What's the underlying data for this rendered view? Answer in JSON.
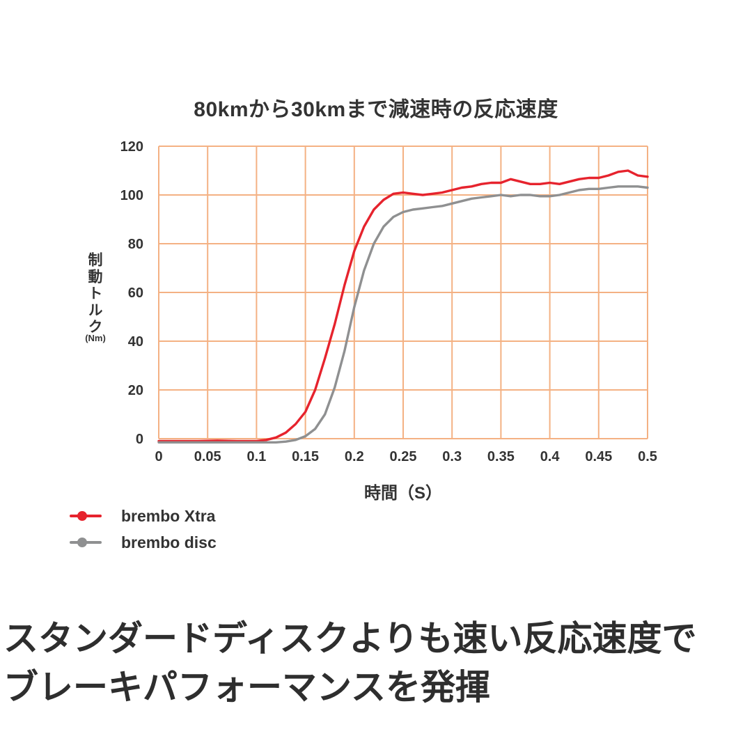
{
  "title": "80kmから30kmまで減速時の反応速度",
  "caption": {
    "line1": "スタンダードディスクよりも速い反応速度で",
    "line2": "ブレーキパフォーマンスを発揮"
  },
  "colors": {
    "grid": "#f4b183",
    "text": "#333333",
    "series_red": "#e6232d",
    "series_gray": "#8f9091"
  },
  "chart_data": {
    "type": "line",
    "title": "80kmから30kmまで減速時の反応速度",
    "xlabel": "時間（S）",
    "ylabel": "制動トルク",
    "ylabel_unit": "(Nm)",
    "xlim": [
      0,
      0.5
    ],
    "ylim": [
      0,
      120
    ],
    "grid": true,
    "grid_color": "#f4b183",
    "legend_position": "bottom-left",
    "x_ticks": [
      0,
      0.05,
      0.1,
      0.15,
      0.2,
      0.25,
      0.3,
      0.35,
      0.4,
      0.45,
      0.5
    ],
    "x_tick_labels": [
      "0",
      "0.05",
      "0.1",
      "0.15",
      "0.2",
      "0.25",
      "0.3",
      "0.35",
      "0.4",
      "0.45",
      "0.5"
    ],
    "y_ticks": [
      0,
      20,
      40,
      60,
      80,
      100,
      120
    ],
    "y_tick_labels": [
      "0",
      "20",
      "40",
      "60",
      "80",
      "100",
      "120"
    ],
    "series": [
      {
        "name": "brembo Xtra",
        "color": "#e6232d",
        "x": [
          0,
          0.02,
          0.04,
          0.06,
          0.08,
          0.1,
          0.11,
          0.12,
          0.13,
          0.14,
          0.15,
          0.16,
          0.17,
          0.18,
          0.19,
          0.2,
          0.21,
          0.22,
          0.23,
          0.24,
          0.25,
          0.26,
          0.27,
          0.28,
          0.29,
          0.3,
          0.31,
          0.32,
          0.33,
          0.34,
          0.35,
          0.36,
          0.37,
          0.38,
          0.39,
          0.4,
          0.41,
          0.42,
          0.43,
          0.44,
          0.45,
          0.46,
          0.47,
          0.48,
          0.49,
          0.5
        ],
        "y": [
          -1,
          -1,
          -1,
          -0.8,
          -1,
          -1,
          -0.5,
          0.5,
          2.5,
          6,
          11,
          20,
          33,
          47,
          63,
          77,
          87,
          94,
          98,
          100.5,
          101,
          100.5,
          100,
          100.5,
          101,
          102,
          103,
          103.5,
          104.5,
          105,
          105,
          106.5,
          105.5,
          104.5,
          104.5,
          105,
          104.5,
          105.5,
          106.5,
          107,
          107,
          108,
          109.5,
          110,
          108,
          107.5
        ]
      },
      {
        "name": "brembo disc",
        "color": "#8f9091",
        "x": [
          0,
          0.02,
          0.04,
          0.06,
          0.08,
          0.1,
          0.12,
          0.13,
          0.14,
          0.15,
          0.16,
          0.17,
          0.18,
          0.19,
          0.2,
          0.21,
          0.22,
          0.23,
          0.24,
          0.25,
          0.26,
          0.27,
          0.28,
          0.29,
          0.3,
          0.31,
          0.32,
          0.33,
          0.34,
          0.35,
          0.36,
          0.37,
          0.38,
          0.39,
          0.4,
          0.41,
          0.42,
          0.43,
          0.44,
          0.45,
          0.46,
          0.47,
          0.48,
          0.49,
          0.5
        ],
        "y": [
          -1.5,
          -1.5,
          -1.5,
          -1.5,
          -1.5,
          -1.5,
          -1.5,
          -1.2,
          -0.5,
          1,
          4,
          10,
          21,
          36,
          54,
          69,
          80,
          87,
          91,
          93,
          94,
          94.5,
          95,
          95.5,
          96.5,
          97.5,
          98.5,
          99,
          99.5,
          100,
          99.5,
          100,
          100,
          99.5,
          99.5,
          100,
          101,
          102,
          102.5,
          102.5,
          103,
          103.5,
          103.5,
          103.5,
          103
        ]
      }
    ]
  }
}
